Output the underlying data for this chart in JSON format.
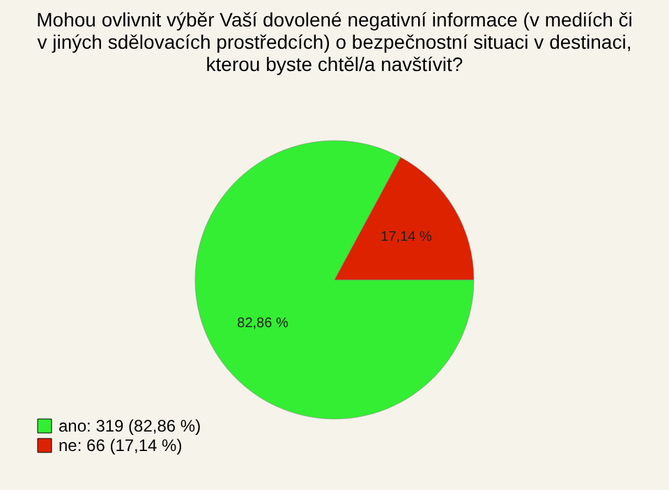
{
  "chart_data": {
    "type": "pie",
    "title": [
      "Mohou ovlivnit výběr Vaší dovolené negativní informace (v mediích či",
      "v jiných sdělovacích prostředcích) o bezpečnostní situaci v destinaci,",
      "kterou byste chtěl/a navštívit?"
    ],
    "categories": [
      "ano: 319 (82,86 %)",
      "ne: 66 (17,14 %)"
    ],
    "values": [
      82.86,
      17.14
    ],
    "value_labels": [
      "82,86 %",
      "17,14 %"
    ],
    "colors": [
      "#33ee33",
      "#dd2200"
    ],
    "legend": "bottom left"
  }
}
